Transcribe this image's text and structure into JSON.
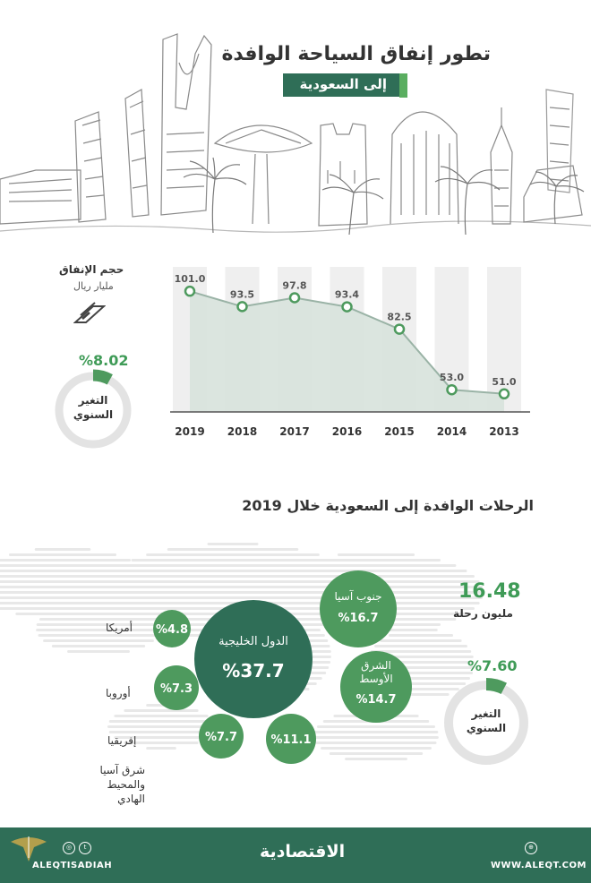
{
  "header": {
    "title_line1": "تطور إنفاق السياحة الوافدة",
    "title_line2": "إلى السعودية"
  },
  "spending": {
    "label": "حجم الإنفاق",
    "unit": "مليار ريال",
    "icon": "money-icon",
    "annual_change_value": "%8.02",
    "annual_change_label_line1": "التغير",
    "annual_change_label_line2": "السنوي",
    "annual_change_fraction": 0.08
  },
  "chart_data": {
    "type": "area",
    "categories": [
      "2019",
      "2018",
      "2017",
      "2016",
      "2015",
      "2014",
      "2013"
    ],
    "values": [
      101.0,
      93.5,
      97.8,
      93.4,
      82.5,
      53.0,
      51.0
    ],
    "value_labels": [
      "101.0",
      "93.5",
      "97.8",
      "93.4",
      "82.5",
      "53.0",
      "51.0"
    ],
    "ylim": [
      40,
      105
    ],
    "grid": false
  },
  "trips": {
    "title": "الرحلات الوافدة إلى السعودية خلال 2019",
    "total_value": "16.48",
    "total_unit": "مليون رحلة",
    "annual_change_value": "%7.60",
    "annual_change_label_line1": "التغير",
    "annual_change_label_line2": "السنوي",
    "annual_change_fraction": 0.076,
    "bubbles": [
      {
        "name": "الدول الخليجية",
        "value": "%37.7",
        "share": 37.7
      },
      {
        "name": "جنوب آسيا",
        "value": "%16.7",
        "share": 16.7
      },
      {
        "name_line1": "الشرق",
        "name_line2": "الأوسط",
        "value": "%14.7",
        "share": 14.7
      },
      {
        "name": "",
        "value": "%11.1",
        "share": 11.1
      },
      {
        "name": "",
        "value": "%7.7",
        "share": 7.7
      },
      {
        "name": "",
        "value": "%7.3",
        "share": 7.3
      },
      {
        "name": "",
        "value": "%4.8",
        "share": 4.8
      }
    ],
    "region_labels": {
      "america": "أمريكا",
      "europe": "أوروبا",
      "africa": "إفريقيا",
      "east_asia_line1": "شرق آسيا",
      "east_asia_line2": "والمحيط الهادي"
    }
  },
  "footer": {
    "brand": "الاقتصادية",
    "handle": "ALEQTISADIAH",
    "website": "WWW.ALEQT.COM"
  },
  "colors": {
    "dark_green": "#2f6e57",
    "mid_green": "#4e9a5e",
    "accent_green": "#5aae60",
    "area_fill": "#d7e2dc",
    "column_grey": "#efefef"
  }
}
